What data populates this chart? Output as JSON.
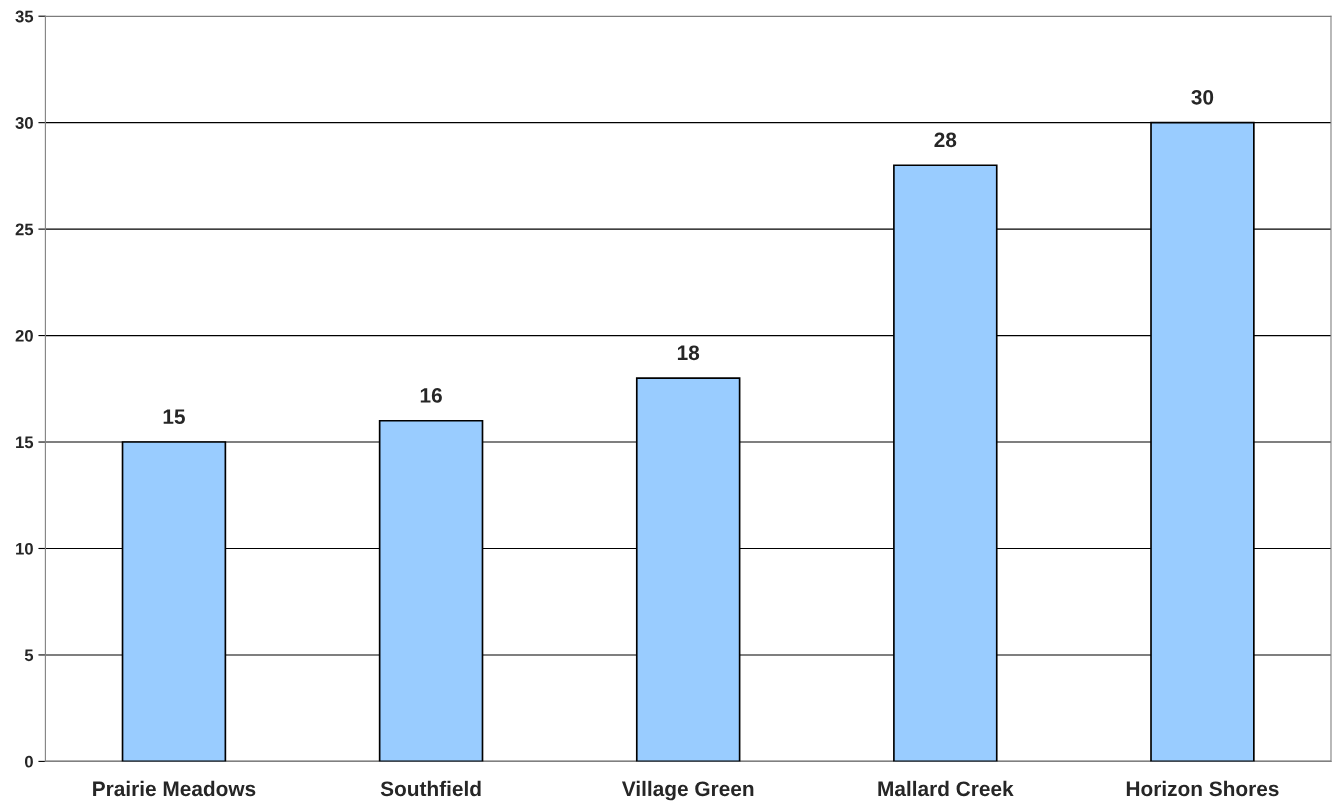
{
  "chart_data": {
    "type": "bar",
    "categories": [
      "Prairie Meadows",
      "Southfield",
      "Village Green",
      "Mallard Creek",
      "Horizon Shores"
    ],
    "values": [
      15,
      16,
      18,
      28,
      30
    ],
    "color": "#99ccff",
    "ylim": [
      0,
      35
    ],
    "yticks": [
      0,
      5,
      10,
      15,
      20,
      25,
      30,
      35
    ],
    "grid": "y",
    "data_labels": true,
    "legend": false
  }
}
